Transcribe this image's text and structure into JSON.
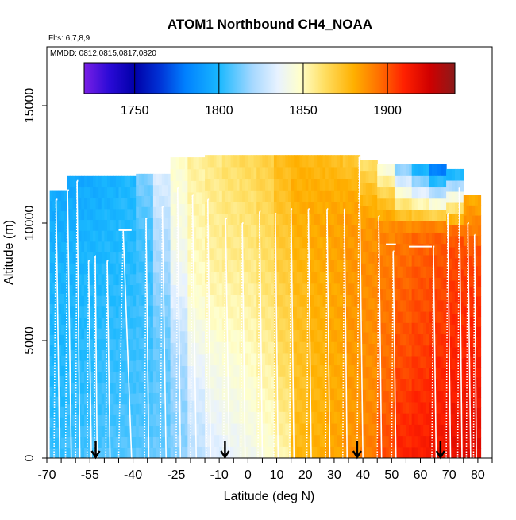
{
  "chart_data": {
    "type": "heatmap",
    "title": "ATOM1 Northbound CH4_NOAA",
    "notes": [
      "Flts: 6,7,8,9",
      "MMDD: 0812,0815,0817,0820"
    ],
    "xlabel": "Latitude (deg N)",
    "ylabel": "Altitude (m)",
    "xlim": [
      -70,
      85
    ],
    "ylim": [
      0,
      17500
    ],
    "x_ticks": [
      -70,
      -55,
      -40,
      -25,
      -10,
      0,
      10,
      20,
      30,
      40,
      50,
      60,
      70,
      80
    ],
    "y_ticks": [
      0,
      5000,
      10000,
      15000
    ],
    "colorbar": {
      "range": [
        1720,
        1940
      ],
      "ticks": [
        1750,
        1800,
        1850,
        1900
      ],
      "stops": [
        {
          "v": 1720,
          "color": "#7a1fe6"
        },
        {
          "v": 1735,
          "color": "#2a0ad6"
        },
        {
          "v": 1750,
          "color": "#0000a8"
        },
        {
          "v": 1765,
          "color": "#0033d6"
        },
        {
          "v": 1780,
          "color": "#0080ff"
        },
        {
          "v": 1800,
          "color": "#19b8ff"
        },
        {
          "v": 1820,
          "color": "#a6d8ff"
        },
        {
          "v": 1835,
          "color": "#e8f2ff"
        },
        {
          "v": 1848,
          "color": "#ffffcc"
        },
        {
          "v": 1862,
          "color": "#ffe066"
        },
        {
          "v": 1880,
          "color": "#ffb000"
        },
        {
          "v": 1895,
          "color": "#ff7000"
        },
        {
          "v": 1910,
          "color": "#ff2000"
        },
        {
          "v": 1925,
          "color": "#d00000"
        },
        {
          "v": 1940,
          "color": "#8b1a1a"
        }
      ]
    },
    "lat_columns": [
      {
        "lat": -66,
        "top": 11400,
        "values": [
          1805,
          1803,
          1802,
          1801,
          1800,
          1800,
          1799,
          1798,
          1796,
          1795
        ]
      },
      {
        "lat": -60,
        "top": 12000,
        "values": [
          1806,
          1804,
          1803,
          1802,
          1801,
          1800,
          1799,
          1798,
          1796,
          1794
        ]
      },
      {
        "lat": -54,
        "top": 12000,
        "values": [
          1807,
          1805,
          1804,
          1803,
          1802,
          1801,
          1800,
          1799,
          1797,
          1795
        ]
      },
      {
        "lat": -48,
        "top": 12000,
        "values": [
          1808,
          1806,
          1805,
          1804,
          1803,
          1802,
          1801,
          1800,
          1799,
          1797
        ]
      },
      {
        "lat": -42,
        "top": 12000,
        "values": [
          1809,
          1807,
          1806,
          1805,
          1804,
          1803,
          1802,
          1801,
          1801,
          1800
        ]
      },
      {
        "lat": -36,
        "top": 12100,
        "values": [
          1810,
          1808,
          1807,
          1806,
          1805,
          1805,
          1805,
          1806,
          1810,
          1815
        ]
      },
      {
        "lat": -30,
        "top": 12100,
        "values": [
          1812,
          1810,
          1810,
          1810,
          1812,
          1815,
          1820,
          1822,
          1828,
          1832
        ]
      },
      {
        "lat": -24,
        "top": 12800,
        "values": [
          1816,
          1816,
          1818,
          1822,
          1828,
          1835,
          1840,
          1843,
          1845,
          1848
        ]
      },
      {
        "lat": -18,
        "top": 12800,
        "values": [
          1825,
          1828,
          1832,
          1838,
          1843,
          1848,
          1850,
          1852,
          1853,
          1855
        ]
      },
      {
        "lat": -12,
        "top": 12900,
        "values": [
          1832,
          1836,
          1840,
          1843,
          1848,
          1852,
          1855,
          1856,
          1857,
          1858
        ]
      },
      {
        "lat": -6,
        "top": 12900,
        "values": [
          1836,
          1840,
          1843,
          1846,
          1850,
          1853,
          1857,
          1858,
          1860,
          1862
        ]
      },
      {
        "lat": 0,
        "top": 12900,
        "values": [
          1840,
          1843,
          1846,
          1849,
          1852,
          1855,
          1858,
          1860,
          1862,
          1865
        ]
      },
      {
        "lat": 6,
        "top": 12900,
        "values": [
          1845,
          1848,
          1851,
          1854,
          1857,
          1860,
          1862,
          1864,
          1866,
          1868
        ]
      },
      {
        "lat": 12,
        "top": 12900,
        "values": [
          1852,
          1856,
          1860,
          1864,
          1866,
          1868,
          1870,
          1872,
          1874,
          1876
        ]
      },
      {
        "lat": 18,
        "top": 12900,
        "values": [
          1878,
          1876,
          1874,
          1874,
          1875,
          1876,
          1878,
          1880,
          1880,
          1878
        ]
      },
      {
        "lat": 24,
        "top": 12900,
        "values": [
          1880,
          1879,
          1878,
          1878,
          1879,
          1880,
          1881,
          1882,
          1880,
          1876
        ]
      },
      {
        "lat": 30,
        "top": 12900,
        "values": [
          1883,
          1882,
          1881,
          1881,
          1882,
          1882,
          1883,
          1883,
          1880,
          1874
        ]
      },
      {
        "lat": 36,
        "top": 12900,
        "values": [
          1888,
          1886,
          1885,
          1885,
          1886,
          1886,
          1886,
          1885,
          1880,
          1870
        ]
      },
      {
        "lat": 42,
        "top": 12700,
        "values": [
          1892,
          1890,
          1888,
          1888,
          1888,
          1888,
          1888,
          1886,
          1876,
          1860
        ]
      },
      {
        "lat": 48,
        "top": 12500,
        "values": [
          1902,
          1900,
          1897,
          1895,
          1894,
          1893,
          1892,
          1890,
          1870,
          1840
        ]
      },
      {
        "lat": 54,
        "top": 12500,
        "values": [
          1910,
          1908,
          1905,
          1902,
          1900,
          1898,
          1896,
          1893,
          1850,
          1810
        ]
      },
      {
        "lat": 60,
        "top": 12500,
        "values": [
          1912,
          1910,
          1908,
          1905,
          1903,
          1901,
          1899,
          1896,
          1840,
          1790
        ]
      },
      {
        "lat": 66,
        "top": 12500,
        "values": [
          1915,
          1913,
          1910,
          1908,
          1905,
          1903,
          1901,
          1897,
          1830,
          1770
        ]
      },
      {
        "lat": 72,
        "top": 12300,
        "values": [
          1918,
          1915,
          1912,
          1910,
          1908,
          1906,
          1903,
          1900,
          1850,
          1790
        ]
      },
      {
        "lat": 78,
        "top": 11200,
        "values": [
          1920,
          1918,
          1915,
          1912,
          1910,
          1908,
          1905,
          1902,
          1890,
          1880
        ]
      }
    ],
    "flight_profiles": [
      {
        "lat_lo": -67.5,
        "lat_hi": -65.5,
        "alt_hi": 11000
      },
      {
        "lat_lo": -63.5,
        "lat_hi": -61.5,
        "alt_hi": 11400
      },
      {
        "lat_lo": -60,
        "lat_hi": -58.5,
        "alt_hi": 11800
      },
      {
        "lat_lo": -56,
        "lat_hi": -54.5,
        "alt_hi": 8400
      },
      {
        "lat_lo": -53.5,
        "lat_hi": -52.5,
        "alt_hi": 8600
      },
      {
        "lat_lo": -49.5,
        "lat_hi": -48,
        "alt_hi": 8400
      },
      {
        "lat_lo": -45,
        "lat_hi": -40.5,
        "alt_hi": 9700
      },
      {
        "lat_lo": -36,
        "lat_hi": -34.5,
        "alt_hi": 10200
      },
      {
        "lat_lo": -30.5,
        "lat_hi": -28.5,
        "alt_hi": 10700
      },
      {
        "lat_lo": -25,
        "lat_hi": -23.5,
        "alt_hi": 11500
      },
      {
        "lat_lo": -20,
        "lat_hi": -18,
        "alt_hi": 11200
      },
      {
        "lat_lo": -14.5,
        "lat_hi": -13,
        "alt_hi": 11000
      },
      {
        "lat_lo": -8.5,
        "lat_hi": -6.5,
        "alt_hi": 10200
      },
      {
        "lat_lo": -2.5,
        "lat_hi": -1,
        "alt_hi": 10000
      },
      {
        "lat_lo": 3.5,
        "lat_hi": 5,
        "alt_hi": 10500
      },
      {
        "lat_lo": 9,
        "lat_hi": 10.5,
        "alt_hi": 10400
      },
      {
        "lat_lo": 14.5,
        "lat_hi": 16,
        "alt_hi": 10600
      },
      {
        "lat_lo": 20.5,
        "lat_hi": 22,
        "alt_hi": 10600
      },
      {
        "lat_lo": 27,
        "lat_hi": 28.5,
        "alt_hi": 10600
      },
      {
        "lat_lo": 33,
        "lat_hi": 34.5,
        "alt_hi": 10600
      },
      {
        "lat_lo": 38,
        "lat_hi": 40,
        "alt_hi": 12800
      },
      {
        "lat_lo": 45,
        "lat_hi": 46.5,
        "alt_hi": 10300
      },
      {
        "lat_lo": 50,
        "lat_hi": 51.5,
        "alt_hi": 8800
      },
      {
        "lat_lo": 64,
        "lat_hi": 65.5,
        "alt_hi": 9000
      },
      {
        "lat_lo": 69,
        "lat_hi": 70.5,
        "alt_hi": 10400
      },
      {
        "lat_lo": 73,
        "lat_hi": 74.5,
        "alt_hi": 11500
      },
      {
        "lat_lo": 76,
        "lat_hi": 77.5,
        "alt_hi": 10000
      },
      {
        "lat_lo": 78.5,
        "lat_hi": 79.5,
        "alt_hi": 9500
      }
    ],
    "cruise_legs": [
      {
        "lat_lo": -45,
        "lat_hi": -40.5,
        "alt": 9700
      },
      {
        "lat_lo": 48,
        "lat_hi": 51.5,
        "alt": 9100
      },
      {
        "lat_lo": 56,
        "lat_hi": 64,
        "alt": 9000
      }
    ],
    "arrow_latitudes": [
      -53,
      -8,
      38,
      67
    ]
  }
}
